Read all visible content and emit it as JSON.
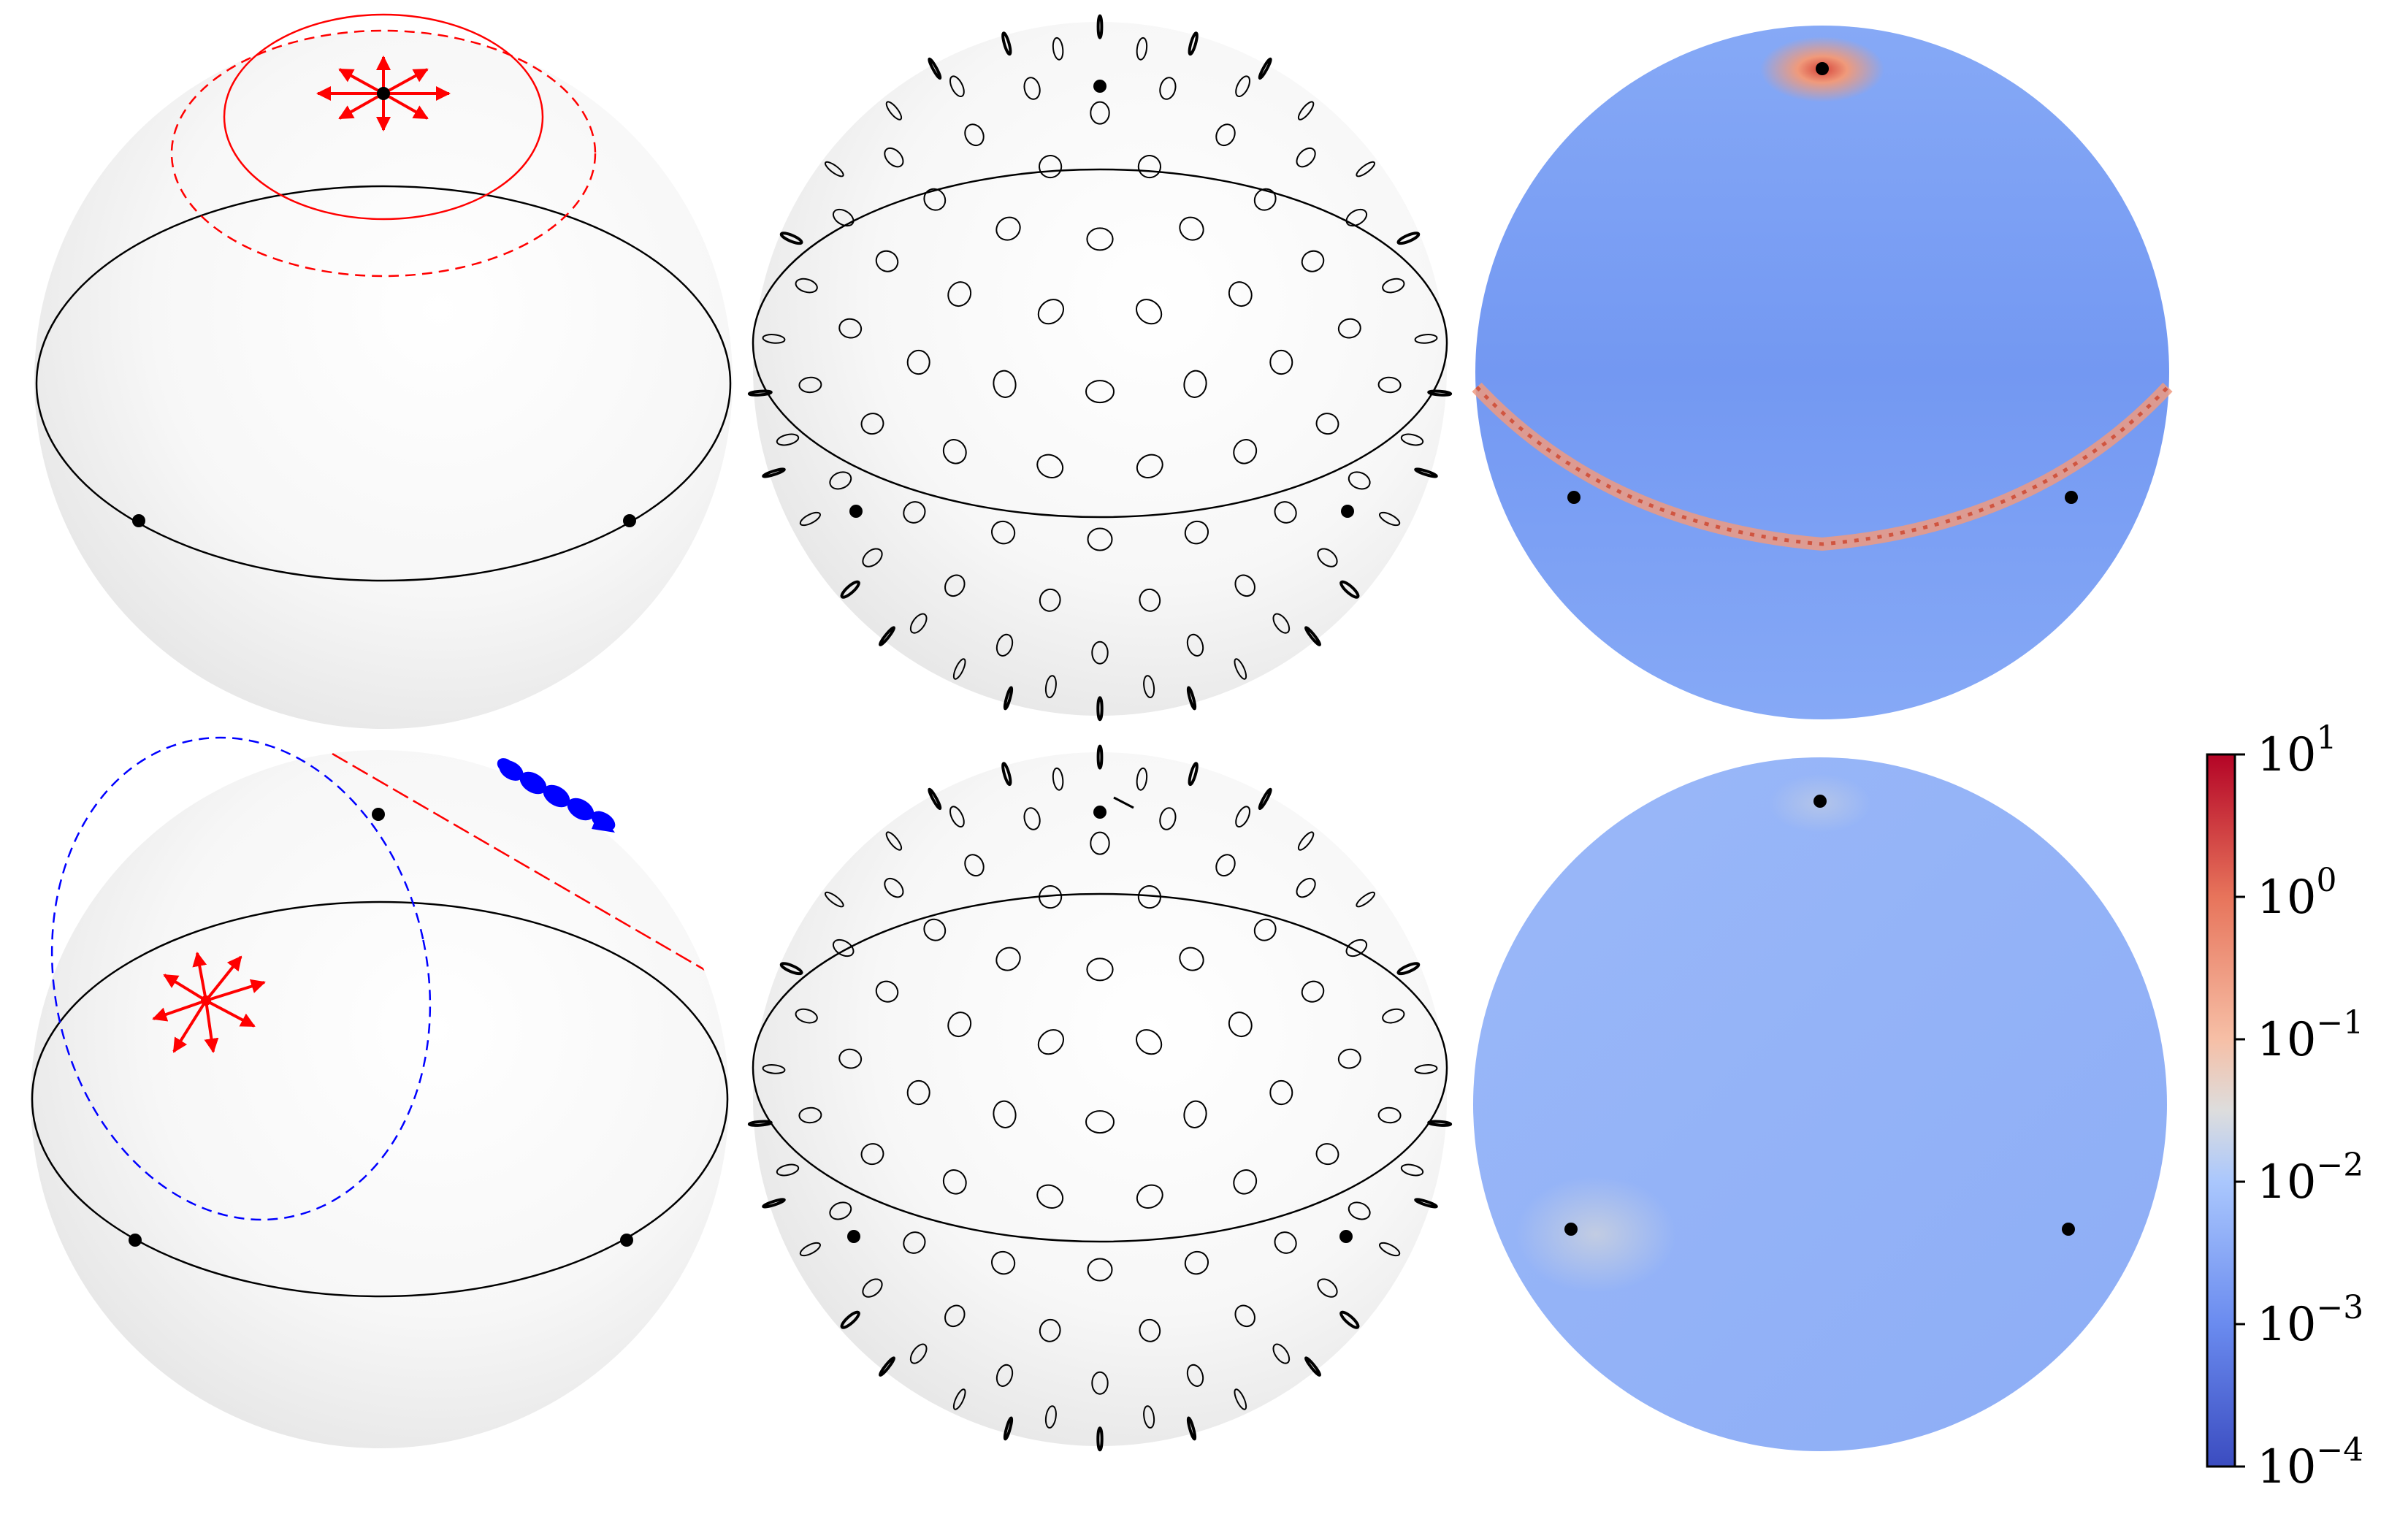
{
  "panels": [
    {
      "id": "sphere-top-left",
      "type": "sphere-geodesic-overlay"
    },
    {
      "id": "sphere-top-middle",
      "type": "sphere-ellipse-field"
    },
    {
      "id": "sphere-top-right",
      "type": "sphere-heatmap"
    },
    {
      "id": "sphere-bottom-left",
      "type": "sphere-geodesic-overlay"
    },
    {
      "id": "sphere-bottom-middle",
      "type": "sphere-ellipse-field"
    },
    {
      "id": "sphere-bottom-right",
      "type": "sphere-heatmap"
    }
  ],
  "colorbar": {
    "colormap": "coolwarm",
    "scale": "log",
    "range": [
      0.0001,
      10
    ],
    "ticks": [
      {
        "base": "10",
        "exp": "1"
      },
      {
        "base": "10",
        "exp": "0"
      },
      {
        "base": "10",
        "exp": "−1"
      },
      {
        "base": "10",
        "exp": "−2"
      },
      {
        "base": "10",
        "exp": "−3"
      },
      {
        "base": "10",
        "exp": "−4"
      }
    ]
  },
  "colors": {
    "sphere": "#f2f2f2",
    "red": "#ff0000",
    "blue": "#0000ff",
    "heat_low": "#3b4cc0",
    "heat_mid": "#dddddd",
    "heat_high": "#b40426",
    "sphere_blue_top": "#7aa0f4",
    "sphere_blue_bottom": "#93b3f7"
  }
}
